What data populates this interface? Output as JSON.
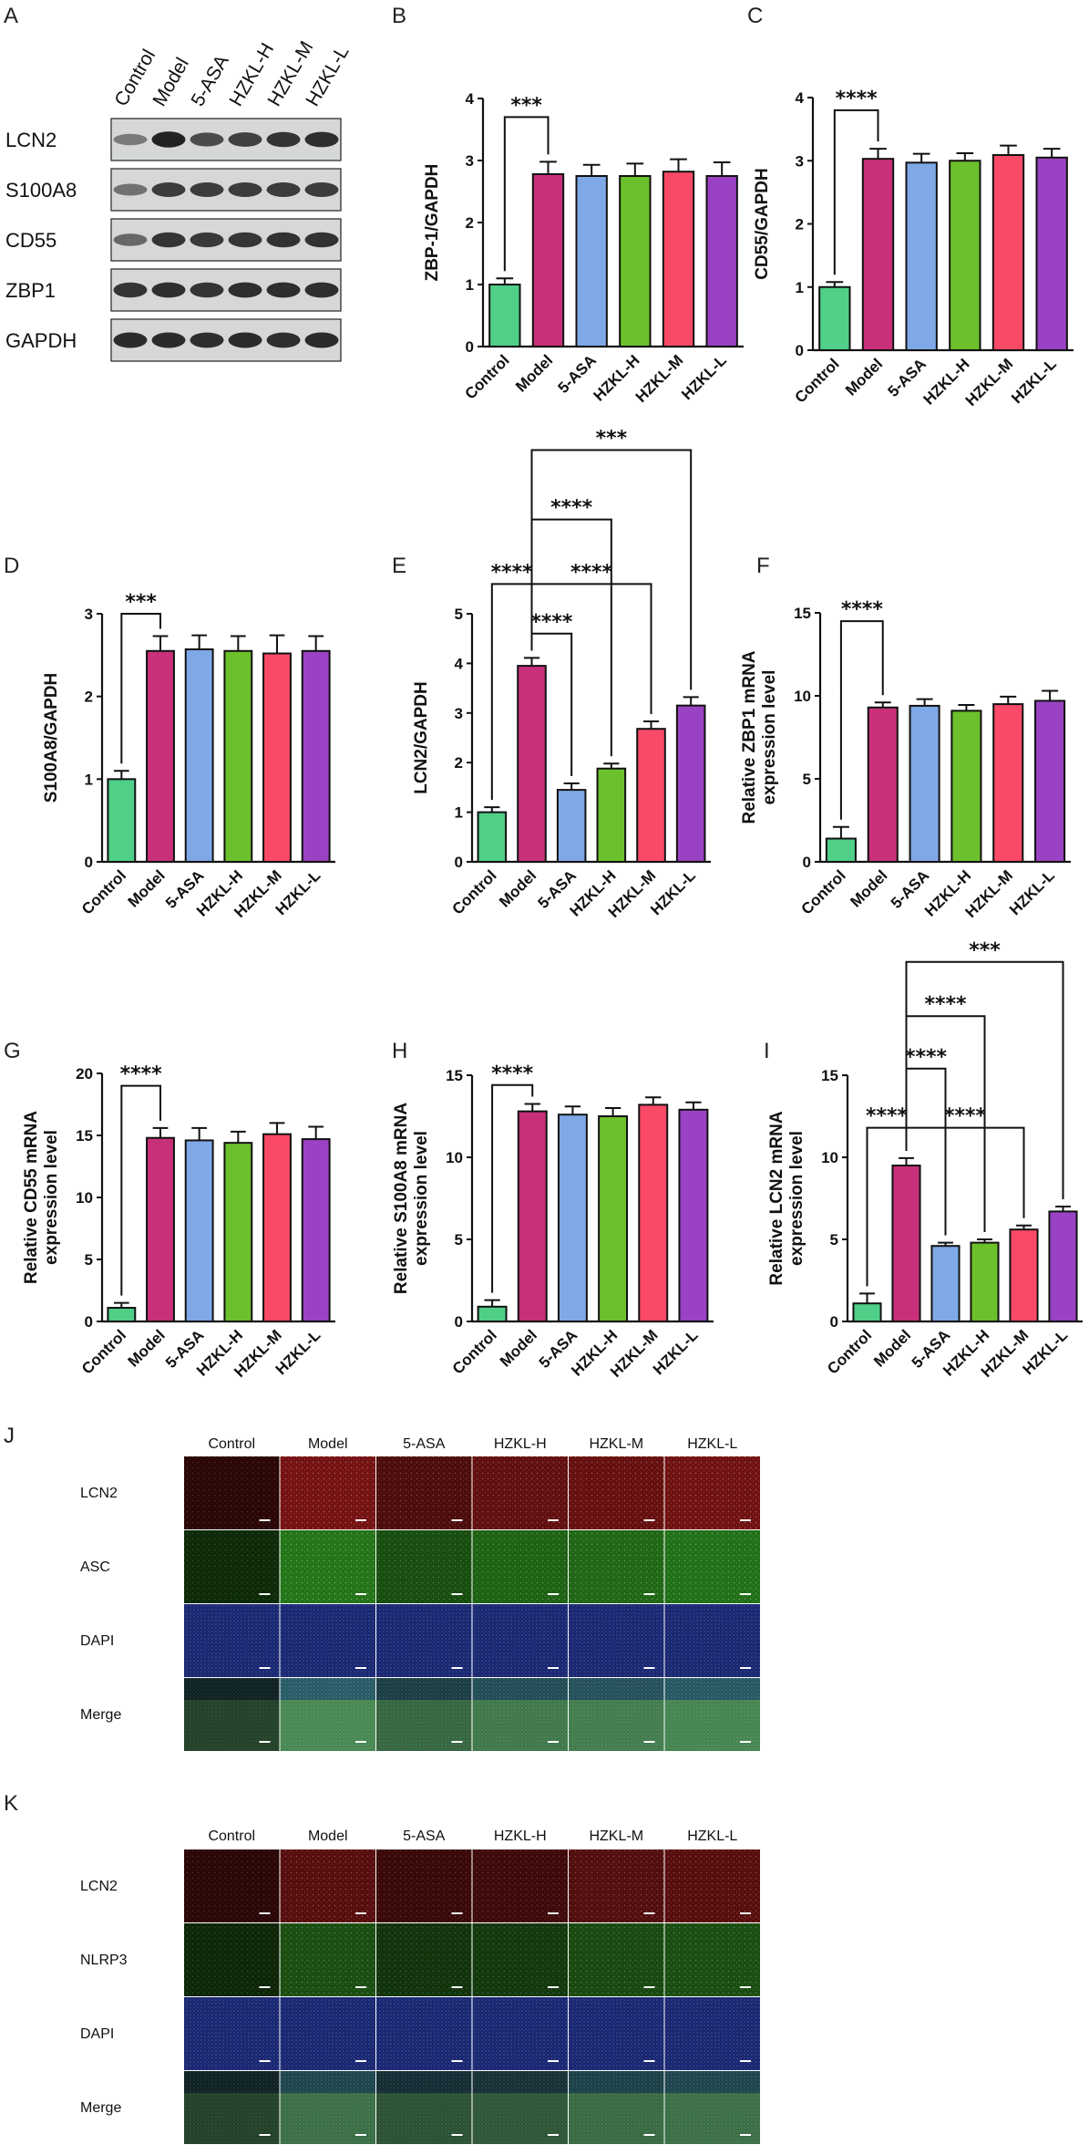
{
  "panel_labels": {
    "A": "A",
    "B": "B",
    "C": "C",
    "D": "D",
    "E": "E",
    "F": "F",
    "G": "G",
    "H": "H",
    "I": "I",
    "J": "J",
    "K": "K"
  },
  "colors": {
    "Control": "#4fcf88",
    "Model": "#c8307a",
    "5-ASA": "#7fa8e6",
    "HZKL-H": "#6cc02b",
    "HZKL-M": "#fb4a68",
    "HZKL-L": "#9a42c4"
  },
  "western_blot": {
    "lanes": [
      "Control",
      "Model",
      "5-ASA",
      "HZKL-H",
      "HZKL-M",
      "HZKL-L"
    ],
    "rows": [
      "LCN2",
      "S100A8",
      "CD55",
      "ZBP1",
      "GAPDH"
    ],
    "band_intensity": [
      [
        0.45,
        0.95,
        0.72,
        0.78,
        0.85,
        0.88
      ],
      [
        0.5,
        0.8,
        0.8,
        0.8,
        0.8,
        0.8
      ],
      [
        0.55,
        0.85,
        0.82,
        0.84,
        0.86,
        0.86
      ],
      [
        0.85,
        0.88,
        0.85,
        0.88,
        0.88,
        0.88
      ],
      [
        0.9,
        0.9,
        0.88,
        0.9,
        0.88,
        0.9
      ]
    ]
  },
  "chart_data": [
    {
      "panel": "B",
      "type": "bar",
      "categories": [
        "Control",
        "Model",
        "5-ASA",
        "HZKL-H",
        "HZKL-M",
        "HZKL-L"
      ],
      "values": [
        1.0,
        2.78,
        2.75,
        2.75,
        2.82,
        2.75
      ],
      "errors": [
        0.1,
        0.2,
        0.18,
        0.2,
        0.2,
        0.22
      ],
      "ylabel": "ZBP-1/GAPDH",
      "ylim": [
        0,
        4
      ],
      "yticks": [
        "0",
        "1",
        "2",
        "3",
        "4"
      ],
      "annotations": [
        {
          "text": "***",
          "from": "Control",
          "to": "Model",
          "level": 3.7
        }
      ]
    },
    {
      "panel": "C",
      "type": "bar",
      "categories": [
        "Control",
        "Model",
        "5-ASA",
        "HZKL-H",
        "HZKL-M",
        "HZKL-L"
      ],
      "values": [
        1.0,
        3.03,
        2.97,
        3.0,
        3.09,
        3.05
      ],
      "errors": [
        0.08,
        0.16,
        0.14,
        0.12,
        0.15,
        0.14
      ],
      "ylabel": "CD55/GAPDH",
      "ylim": [
        0,
        4
      ],
      "yticks": [
        "0",
        "1",
        "2",
        "3",
        "4"
      ],
      "annotations": [
        {
          "text": "****",
          "from": "Control",
          "to": "Model",
          "level": 3.8
        }
      ]
    },
    {
      "panel": "D",
      "type": "bar",
      "categories": [
        "Control",
        "Model",
        "5-ASA",
        "HZKL-H",
        "HZKL-M",
        "HZKL-L"
      ],
      "values": [
        1.0,
        2.55,
        2.57,
        2.55,
        2.52,
        2.55
      ],
      "errors": [
        0.1,
        0.18,
        0.17,
        0.18,
        0.22,
        0.18
      ],
      "ylabel": "S100A8/GAPDH",
      "ylim": [
        0,
        3
      ],
      "yticks": [
        "0",
        "1",
        "2",
        "3"
      ],
      "annotations": [
        {
          "text": "***",
          "from": "Control",
          "to": "Model",
          "level": 3.0
        }
      ]
    },
    {
      "panel": "E",
      "type": "bar",
      "categories": [
        "Control",
        "Model",
        "5-ASA",
        "HZKL-H",
        "HZKL-M",
        "HZKL-L"
      ],
      "values": [
        1.0,
        3.95,
        1.45,
        1.88,
        2.68,
        3.15
      ],
      "errors": [
        0.1,
        0.16,
        0.13,
        0.1,
        0.15,
        0.17
      ],
      "ylabel": "LCN2/GAPDH",
      "ylim": [
        0,
        5
      ],
      "yticks": [
        "0",
        "1",
        "2",
        "3",
        "4",
        "5"
      ],
      "annotations": [
        {
          "text": "****",
          "from": "Control",
          "to": "Model",
          "level": 5.6
        },
        {
          "text": "****",
          "from": "Model",
          "to": "5-ASA",
          "level": 4.6
        },
        {
          "text": "****",
          "from": "Model",
          "to": "HZKL-M",
          "level": 5.6
        },
        {
          "text": "****",
          "from": "Model",
          "to": "HZKL-H",
          "level": 6.9
        },
        {
          "text": "***",
          "from": "Model",
          "to": "HZKL-L",
          "level": 8.3
        }
      ]
    },
    {
      "panel": "F",
      "type": "bar",
      "categories": [
        "Control",
        "Model",
        "5-ASA",
        "HZKL-H",
        "HZKL-M",
        "HZKL-L"
      ],
      "values": [
        1.4,
        9.3,
        9.4,
        9.1,
        9.5,
        9.7
      ],
      "errors": [
        0.7,
        0.3,
        0.4,
        0.35,
        0.45,
        0.6
      ],
      "ylabel": "Relative ZBP1 mRNA expression level",
      "ylim": [
        0,
        15
      ],
      "yticks": [
        "0",
        "5",
        "10",
        "15"
      ],
      "annotations": [
        {
          "text": "****",
          "from": "Control",
          "to": "Model",
          "level": 14.5
        }
      ]
    },
    {
      "panel": "G",
      "type": "bar",
      "categories": [
        "Control",
        "Model",
        "5-ASA",
        "HZKL-H",
        "HZKL-M",
        "HZKL-L"
      ],
      "values": [
        1.1,
        14.8,
        14.6,
        14.4,
        15.1,
        14.7
      ],
      "errors": [
        0.4,
        0.8,
        1.0,
        0.9,
        0.9,
        1.0
      ],
      "ylabel": "Relative CD55 mRNA expression level",
      "ylim": [
        0,
        20
      ],
      "yticks": [
        "0",
        "5",
        "10",
        "15",
        "20"
      ],
      "annotations": [
        {
          "text": "****",
          "from": "Control",
          "to": "Model",
          "level": 19.0
        }
      ]
    },
    {
      "panel": "H",
      "type": "bar",
      "categories": [
        "Control",
        "Model",
        "5-ASA",
        "HZKL-H",
        "HZKL-M",
        "HZKL-L"
      ],
      "values": [
        0.9,
        12.8,
        12.6,
        12.5,
        13.2,
        12.9
      ],
      "errors": [
        0.4,
        0.45,
        0.5,
        0.5,
        0.45,
        0.45
      ],
      "ylabel": "Relative S100A8 mRNA expression level",
      "ylim": [
        0,
        15
      ],
      "yticks": [
        "0",
        "5",
        "10",
        "15"
      ],
      "annotations": [
        {
          "text": "****",
          "from": "Control",
          "to": "Model",
          "level": 14.4
        }
      ]
    },
    {
      "panel": "I",
      "type": "bar",
      "categories": [
        "Control",
        "Model",
        "5-ASA",
        "HZKL-H",
        "HZKL-M",
        "HZKL-L"
      ],
      "values": [
        1.1,
        9.5,
        4.6,
        4.8,
        5.6,
        6.7
      ],
      "errors": [
        0.6,
        0.45,
        0.2,
        0.2,
        0.25,
        0.3
      ],
      "ylabel": "Relative LCN2 mRNA expression level",
      "ylim": [
        0,
        15
      ],
      "yticks": [
        "0",
        "5",
        "10",
        "15"
      ],
      "annotations": [
        {
          "text": "****",
          "from": "Control",
          "to": "Model",
          "level": 11.8
        },
        {
          "text": "****",
          "from": "Model",
          "to": "5-ASA",
          "level": 15.4
        },
        {
          "text": "****",
          "from": "Model",
          "to": "HZKL-M",
          "level": 11.8
        },
        {
          "text": "****",
          "from": "Model",
          "to": "HZKL-H",
          "level": 18.6
        },
        {
          "text": "***",
          "from": "Model",
          "to": "HZKL-L",
          "level": 21.9
        }
      ]
    }
  ],
  "if_panels": [
    {
      "panel": "J",
      "columns": [
        "Control",
        "Model",
        "5-ASA",
        "HZKL-H",
        "HZKL-M",
        "HZKL-L"
      ],
      "rows": [
        "LCN2",
        "ASC",
        "DAPI",
        "Merge"
      ],
      "signal_strength": [
        0.15,
        0.9,
        0.5,
        0.7,
        0.75,
        0.85
      ]
    },
    {
      "panel": "K",
      "columns": [
        "Control",
        "Model",
        "5-ASA",
        "HZKL-H",
        "HZKL-M",
        "HZKL-L"
      ],
      "rows": [
        "LCN2",
        "NLRP3",
        "DAPI",
        "Merge"
      ],
      "signal_strength": [
        0.15,
        0.6,
        0.3,
        0.35,
        0.55,
        0.6
      ]
    }
  ]
}
